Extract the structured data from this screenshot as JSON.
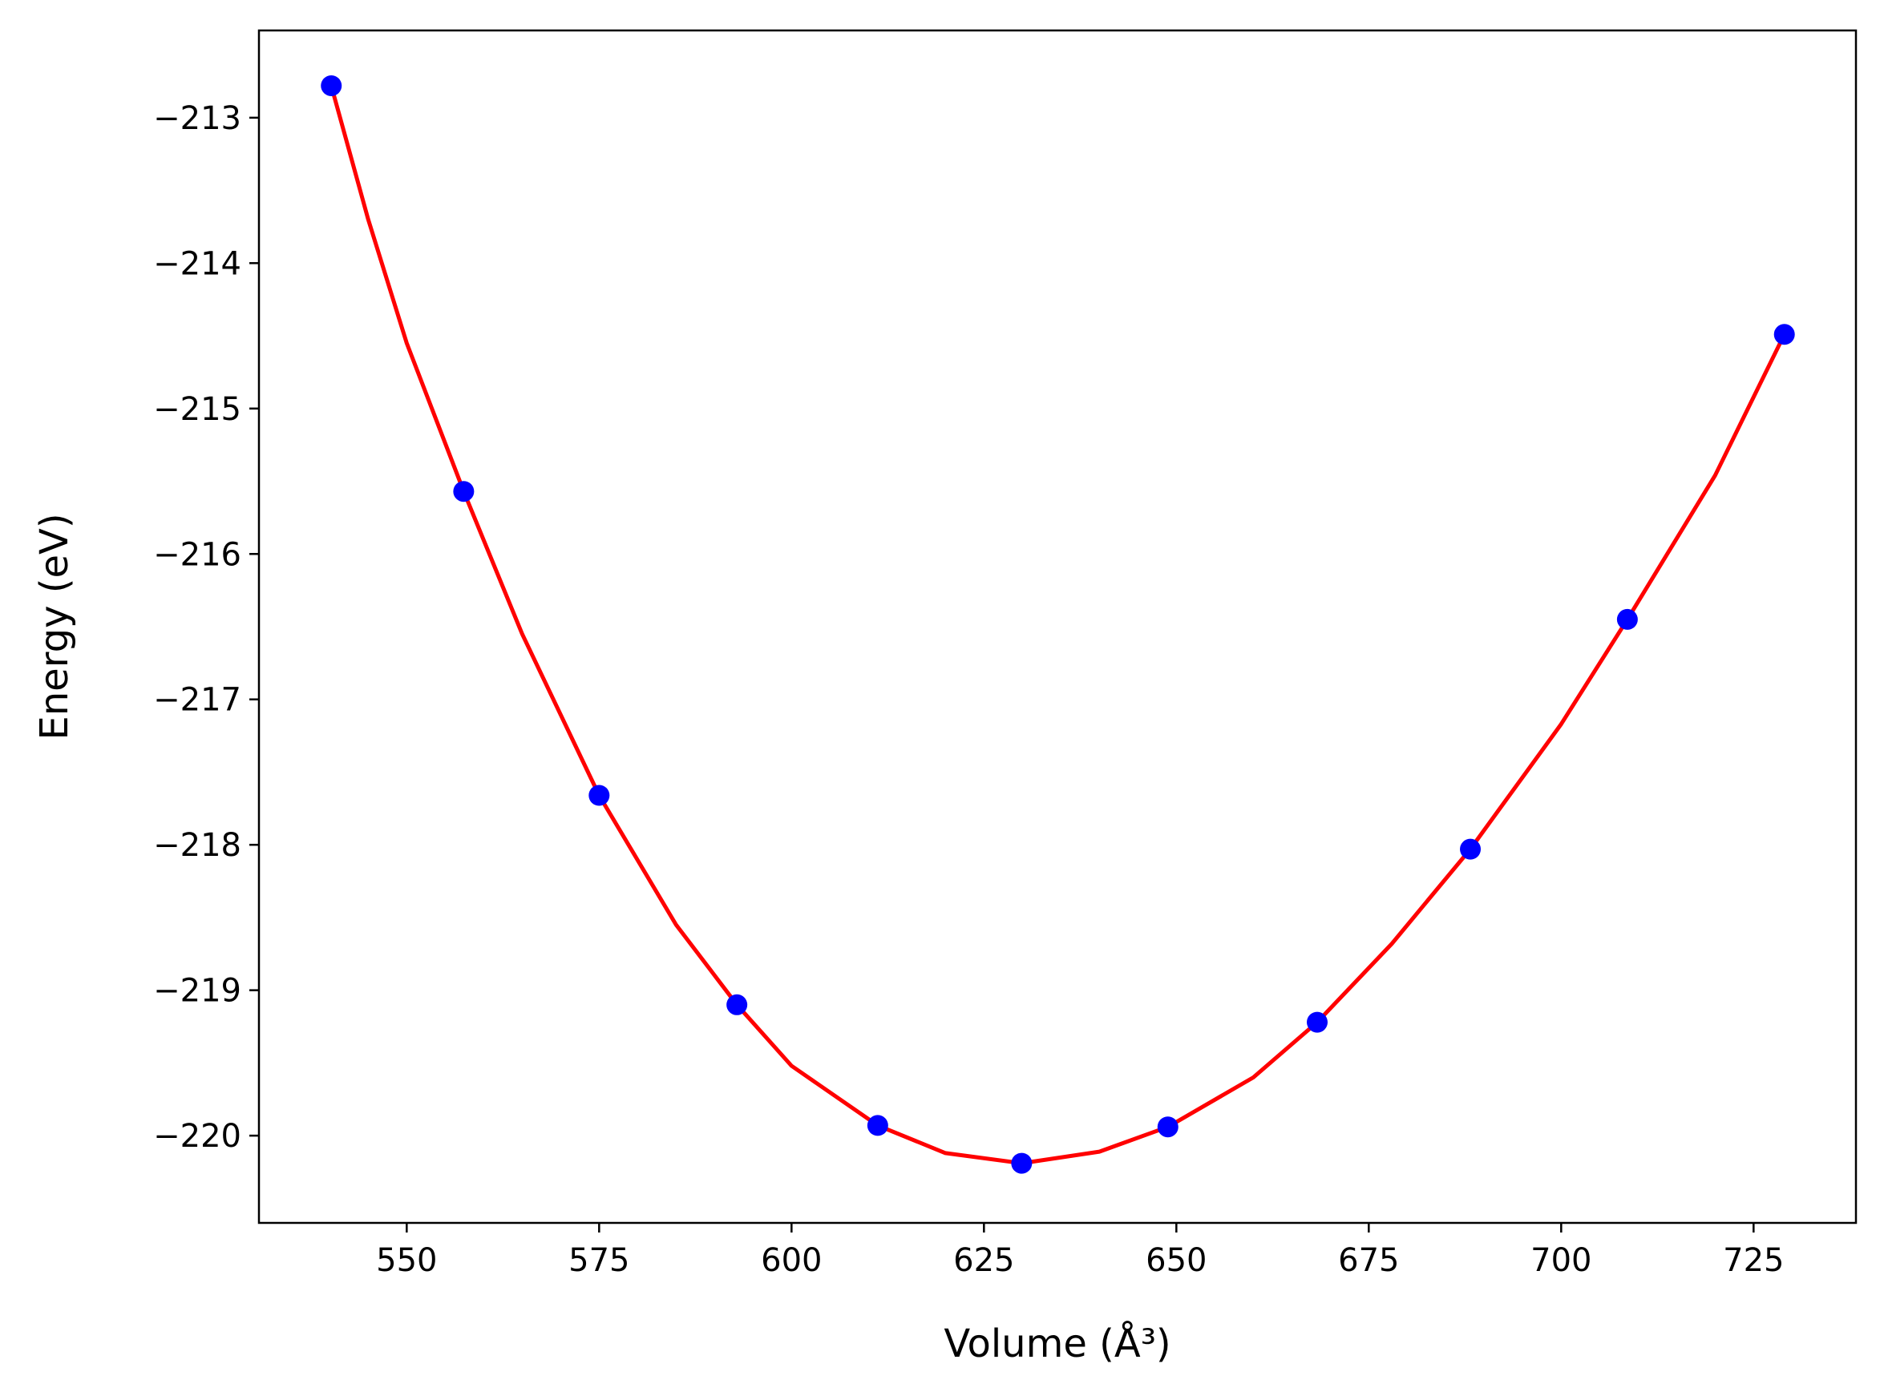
{
  "chart_data": {
    "type": "scatter",
    "xlabel": "Volume (Å³)",
    "ylabel": "Energy (eV)",
    "xlim": [
      530.8,
      738.3
    ],
    "ylim": [
      -220.6,
      -212.4
    ],
    "xticks": [
      550,
      575,
      600,
      625,
      650,
      675,
      700,
      725
    ],
    "yticks": [
      -213,
      -214,
      -215,
      -216,
      -217,
      -218,
      -219,
      -220
    ],
    "xtick_labels": [
      "550",
      "575",
      "600",
      "625",
      "650",
      "675",
      "700",
      "725"
    ],
    "ytick_labels": [
      "−213",
      "−214",
      "−215",
      "−216",
      "−217",
      "−218",
      "−219",
      "−220"
    ],
    "grid": false,
    "series": [
      {
        "kind": "points",
        "color": "#0000ff",
        "x": [
          540.2,
          557.4,
          575.0,
          592.9,
          611.2,
          629.9,
          648.9,
          668.3,
          688.2,
          708.6,
          729.0
        ],
        "y": [
          -212.78,
          -215.57,
          -217.66,
          -219.1,
          -219.93,
          -220.19,
          -219.94,
          -219.22,
          -218.03,
          -216.45,
          -214.49
        ]
      },
      {
        "kind": "fit-curve",
        "color": "#ff0000",
        "x": [
          540.2,
          545,
          550,
          557.4,
          565,
          575.0,
          585,
          592.9,
          600,
          611.2,
          620,
          629.9,
          640,
          648.9,
          660,
          668.3,
          678,
          688.2,
          700,
          708.6,
          720,
          729.0
        ],
        "y": [
          -212.78,
          -213.7,
          -214.55,
          -215.57,
          -216.55,
          -217.66,
          -218.55,
          -219.1,
          -219.52,
          -219.93,
          -220.12,
          -220.19,
          -220.11,
          -219.94,
          -219.6,
          -219.22,
          -218.68,
          -218.03,
          -217.17,
          -216.45,
          -215.46,
          -214.49
        ]
      }
    ]
  }
}
